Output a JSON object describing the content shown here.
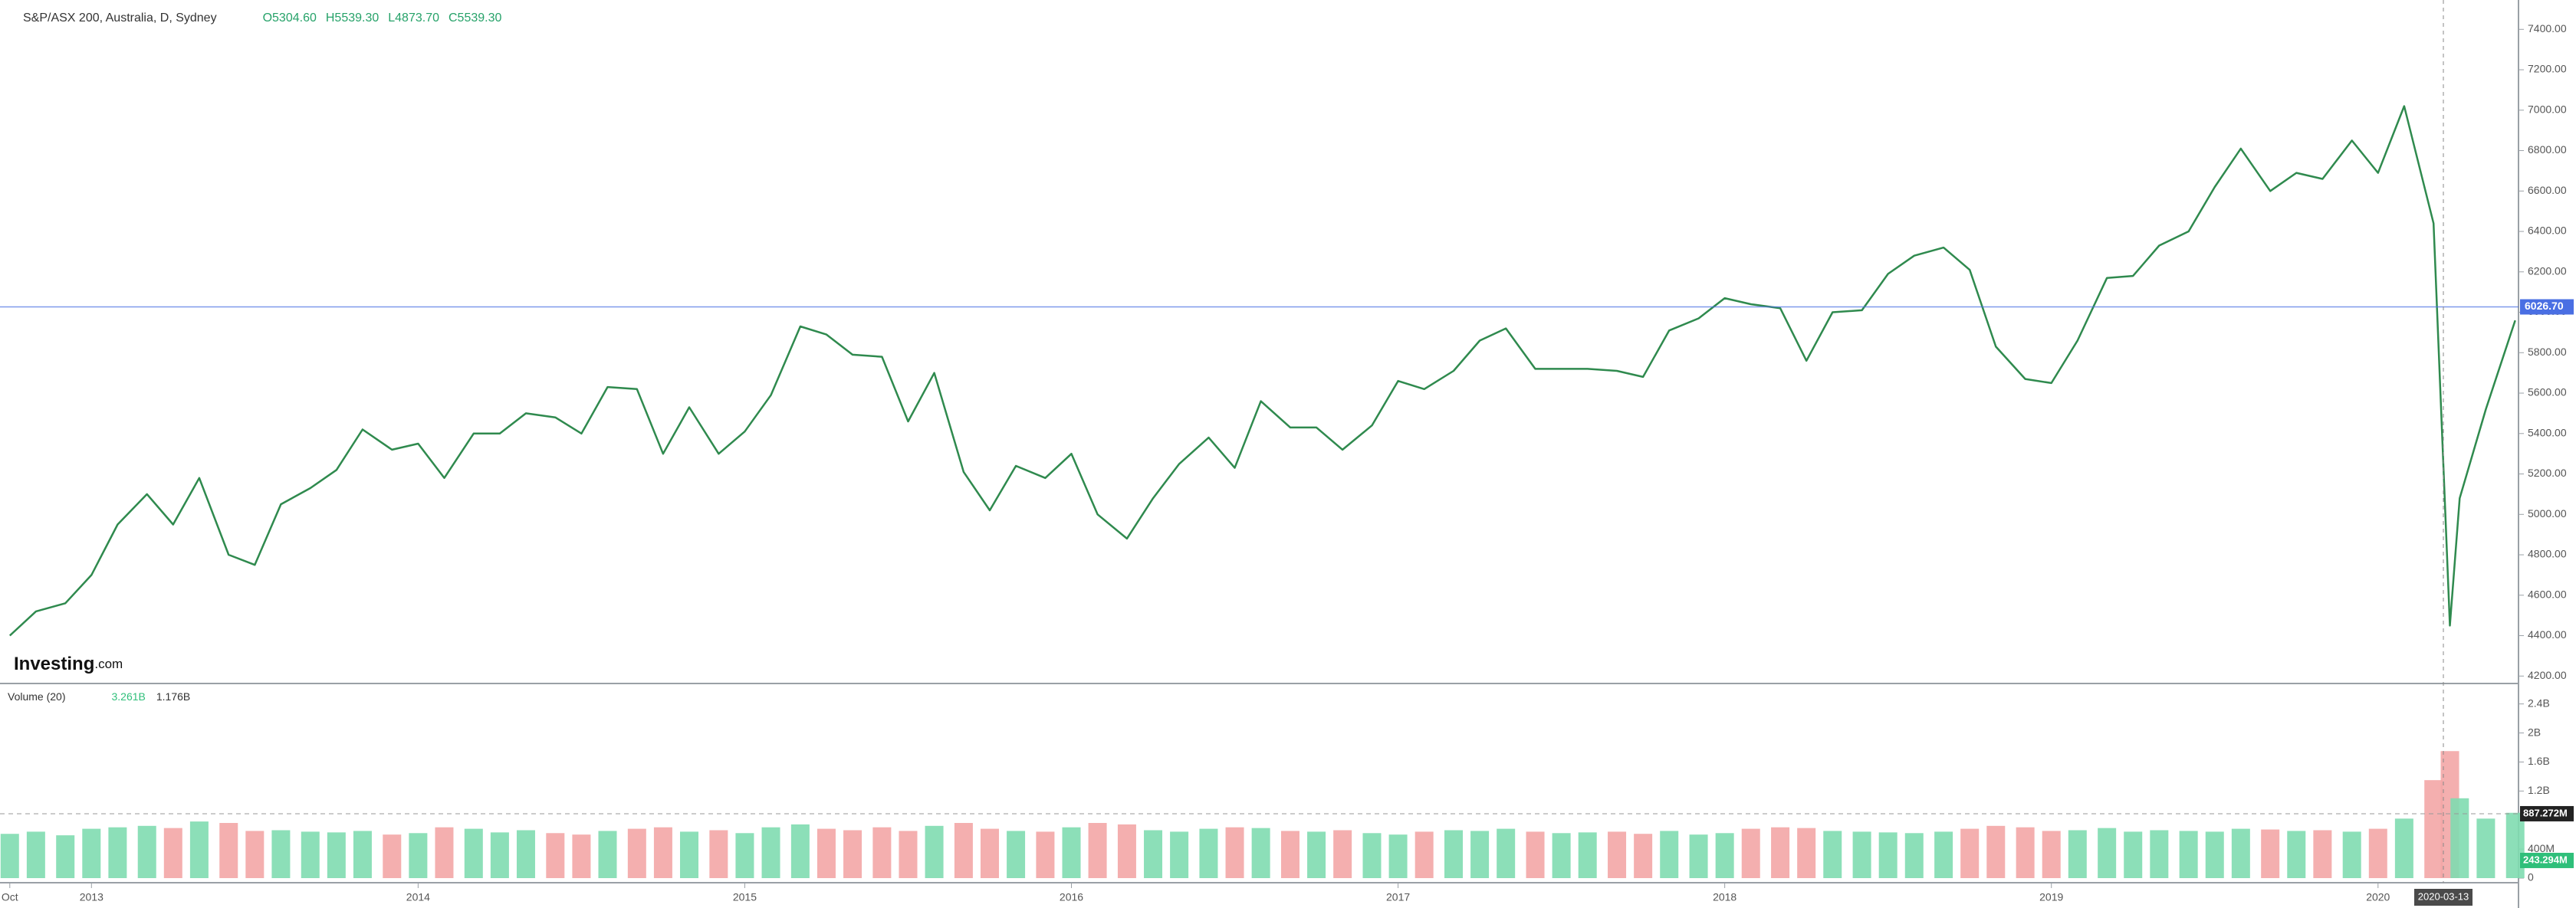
{
  "chart_data": [
    {
      "type": "line",
      "title": "S&P/ASX 200, Australia, D, Sydney",
      "ohlc": [
        "O5304.60",
        "H5539.30",
        "L4873.70",
        "C5539.30"
      ],
      "logo": [
        "Investing",
        ".com"
      ],
      "color": "#2f8a4e",
      "x": [
        2012.75,
        2012.83,
        2012.92,
        2013.0,
        2013.08,
        2013.17,
        2013.25,
        2013.33,
        2013.42,
        2013.5,
        2013.58,
        2013.67,
        2013.75,
        2013.83,
        2013.92,
        2014.0,
        2014.08,
        2014.17,
        2014.25,
        2014.33,
        2014.42,
        2014.5,
        2014.58,
        2014.67,
        2014.75,
        2014.83,
        2014.92,
        2015.0,
        2015.08,
        2015.17,
        2015.25,
        2015.33,
        2015.42,
        2015.5,
        2015.58,
        2015.67,
        2015.75,
        2015.83,
        2015.92,
        2016.0,
        2016.08,
        2016.17,
        2016.25,
        2016.33,
        2016.42,
        2016.5,
        2016.58,
        2016.67,
        2016.75,
        2016.83,
        2016.92,
        2017.0,
        2017.08,
        2017.17,
        2017.25,
        2017.33,
        2017.42,
        2017.5,
        2017.58,
        2017.67,
        2017.75,
        2017.83,
        2017.92,
        2018.0,
        2018.08,
        2018.17,
        2018.25,
        2018.33,
        2018.42,
        2018.5,
        2018.58,
        2018.67,
        2018.75,
        2018.83,
        2018.92,
        2019.0,
        2019.08,
        2019.17,
        2019.25,
        2019.33,
        2019.42,
        2019.5,
        2019.58,
        2019.67,
        2019.75,
        2019.83,
        2019.92,
        2020.0,
        2020.08,
        2020.17,
        2020.22,
        2020.25,
        2020.33,
        2020.42
      ],
      "values": [
        4400,
        4520,
        4560,
        4700,
        4950,
        5100,
        4950,
        5180,
        4800,
        4750,
        5050,
        5130,
        5220,
        5420,
        5320,
        5350,
        5180,
        5400,
        5400,
        5500,
        5480,
        5400,
        5630,
        5620,
        5300,
        5530,
        5300,
        5410,
        5590,
        5930,
        5890,
        5790,
        5780,
        5460,
        5700,
        5210,
        5020,
        5240,
        5180,
        5300,
        5000,
        4880,
        5080,
        5250,
        5380,
        5230,
        5560,
        5430,
        5430,
        5320,
        5440,
        5660,
        5620,
        5710,
        5860,
        5920,
        5720,
        5720,
        5720,
        5710,
        5680,
        5910,
        5970,
        6070,
        6040,
        6020,
        5760,
        6000,
        6010,
        6190,
        6280,
        6320,
        6210,
        5830,
        5670,
        5650,
        5860,
        6170,
        6180,
        6330,
        6400,
        6620,
        6810,
        6600,
        6690,
        6660,
        6850,
        6690,
        7020,
        6440,
        4450,
        5080,
        5520,
        5960
      ],
      "xlim": [
        2012.72,
        2020.43
      ],
      "xticks": [
        {
          "value": 2012.75,
          "label": "Oct"
        },
        2013,
        2014,
        2015,
        2016,
        2017,
        2018,
        2019,
        2020
      ],
      "ylim": [
        4167,
        7530
      ],
      "yticks": [
        {
          "value": 4200,
          "label": "4200.00"
        },
        {
          "value": 4400,
          "label": "4400.00"
        },
        {
          "value": 4600,
          "label": "4600.00"
        },
        {
          "value": 4800,
          "label": "4800.00"
        },
        {
          "value": 5000,
          "label": "5000.00"
        },
        {
          "value": 5200,
          "label": "5200.00"
        },
        {
          "value": 5400,
          "label": "5400.00"
        },
        {
          "value": 5600,
          "label": "5600.00"
        },
        {
          "value": 5800,
          "label": "5800.00"
        },
        {
          "value": 6000,
          "label": "6000.00"
        },
        {
          "value": 6200,
          "label": "6200.00"
        },
        {
          "value": 6400,
          "label": "6400.00"
        },
        {
          "value": 6600,
          "label": "6600.00"
        },
        {
          "value": 6800,
          "label": "6800.00"
        },
        {
          "value": 7000,
          "label": "7000.00"
        },
        {
          "value": 7200,
          "label": "7200.00"
        },
        {
          "value": 7400,
          "label": "7400.00"
        }
      ],
      "price_line": {
        "value": 6026.7,
        "label": "6026.70",
        "color": "#4a6fe3"
      },
      "crosshair": {
        "value": 2020.2,
        "label": "2020-03-13"
      }
    },
    {
      "type": "bar",
      "title": "Volume (20)",
      "header_values": [
        "3.261B",
        "1.176B"
      ],
      "up_color": "#7fdcb0",
      "down_color": "#f3a6a6",
      "values": [
        610000000,
        640000000,
        590000000,
        680000000,
        700000000,
        720000000,
        690000000,
        780000000,
        760000000,
        650000000,
        660000000,
        640000000,
        630000000,
        650000000,
        600000000,
        620000000,
        700000000,
        680000000,
        630000000,
        660000000,
        620000000,
        600000000,
        650000000,
        680000000,
        700000000,
        640000000,
        660000000,
        620000000,
        700000000,
        740000000,
        680000000,
        660000000,
        700000000,
        650000000,
        720000000,
        760000000,
        680000000,
        650000000,
        640000000,
        700000000,
        760000000,
        740000000,
        660000000,
        640000000,
        680000000,
        700000000,
        690000000,
        650000000,
        640000000,
        660000000,
        620000000,
        600000000,
        640000000,
        660000000,
        650000000,
        680000000,
        640000000,
        620000000,
        630000000,
        640000000,
        610000000,
        650000000,
        600000000,
        620000000,
        680000000,
        700000000,
        690000000,
        650000000,
        640000000,
        630000000,
        620000000,
        640000000,
        680000000,
        720000000,
        700000000,
        650000000,
        660000000,
        690000000,
        640000000,
        660000000,
        650000000,
        640000000,
        680000000,
        670000000,
        650000000,
        660000000,
        640000000,
        680000000,
        820000000,
        1350000000,
        1750000000,
        1100000000,
        820000000,
        900000000
      ],
      "ylim": [
        0,
        2650000000
      ],
      "yticks": [
        0,
        {
          "value": 400000000,
          "label": "400M"
        },
        {
          "value": 1200000000,
          "label": "1.2B"
        },
        {
          "value": 1600000000,
          "label": "1.6B"
        },
        {
          "value": 2000000000,
          "label": "2B"
        },
        {
          "value": 2400000000,
          "label": "2.4B"
        }
      ],
      "markers": [
        {
          "value": 887272000,
          "label": "887.272M",
          "color": "#222222"
        },
        {
          "value": 243294000,
          "label": "243.294M",
          "color": "#2fbf7a"
        }
      ]
    }
  ]
}
